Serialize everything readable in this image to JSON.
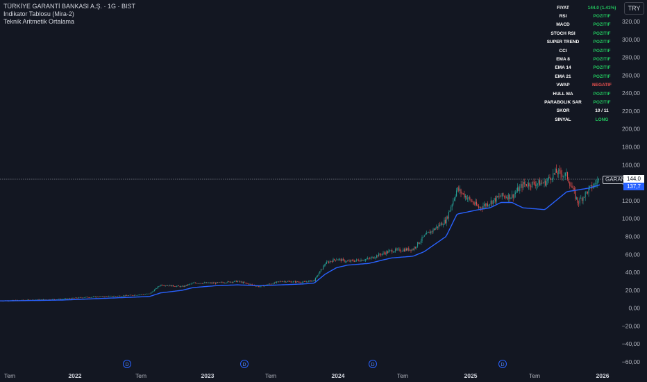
{
  "legend": {
    "symbol_line": "TÜRKİYE GARANTİ BANKASI A.Ş. · 1G · BIST",
    "indicator_1": "Indikator Tablosu (Mira-2)",
    "indicator_2": "Teknik Aritmetik Ortalama"
  },
  "currency_button": "TRY",
  "indicator_table": {
    "header": {
      "label": "FIYAT",
      "value": "144.0 (1.41%)"
    },
    "rows": [
      {
        "label": "RSI",
        "value": "POZITIF",
        "status": "positive"
      },
      {
        "label": "MACD",
        "value": "POZITIF",
        "status": "positive"
      },
      {
        "label": "STOCH RSI",
        "value": "POZITIF",
        "status": "positive"
      },
      {
        "label": "SUPER TREND",
        "value": "POZITIF",
        "status": "positive"
      },
      {
        "label": "CCI",
        "value": "POZITIF",
        "status": "positive"
      },
      {
        "label": "EMA 8",
        "value": "POZITIF",
        "status": "positive"
      },
      {
        "label": "EMA 14",
        "value": "POZITIF",
        "status": "positive"
      },
      {
        "label": "EMA 21",
        "value": "POZITIF",
        "status": "positive"
      },
      {
        "label": "VWAP",
        "value": "NEGATIF",
        "status": "negative"
      },
      {
        "label": "HULL MA",
        "value": "POZITIF",
        "status": "positive"
      },
      {
        "label": "PARABOLIK SAR",
        "value": "POZITIF",
        "status": "positive"
      }
    ],
    "score": {
      "label": "SKOR",
      "value": "10 / 11"
    },
    "signal": {
      "label": "SINYAL",
      "value": "LONG"
    }
  },
  "price_tags": {
    "symbol": "GARAN",
    "last_price": "144,0",
    "ma_value": "137,7"
  },
  "colors": {
    "background": "#131722",
    "up_candle": "#26a69a",
    "down_candle": "#ef5350",
    "ma_line": "#2962ff",
    "positive_text": "#22c55e",
    "negative_text": "#ef5350",
    "highlight_text": "#fde047"
  },
  "dividend_marker_label": "D",
  "chart_data": {
    "type": "line",
    "symbol": "GARAN",
    "timeframe": "1G",
    "y_axis": {
      "ticks": [
        "320,00",
        "300,00",
        "280,00",
        "260,00",
        "240,00",
        "220,00",
        "200,00",
        "180,00",
        "160,00",
        "140,00",
        "120,00",
        "100,00",
        "80,00",
        "60,00",
        "40,00",
        "20,00",
        "0,00",
        "−20,00",
        "−40,00",
        "−60,00"
      ],
      "ylim": [
        -60,
        320
      ]
    },
    "x_axis": {
      "ticks": [
        "Tem",
        "2022",
        "Tem",
        "2023",
        "Tem",
        "2024",
        "Tem",
        "2025",
        "Tem",
        "2026"
      ],
      "bold_ticks": [
        "2022",
        "2023",
        "2024",
        "2025",
        "2026"
      ],
      "date_range": [
        "2021-06",
        "2026-01"
      ]
    },
    "dividend_markers": [
      "2022-04",
      "2023-04",
      "2024-04",
      "2025-04"
    ],
    "last_price": 144.0,
    "ma_last": 137.7,
    "series": [
      {
        "kind": "price",
        "x": [
          "2021-06",
          "2021-09",
          "2021-12",
          "2022-02",
          "2022-04",
          "2022-06",
          "2022-08",
          "2022-09",
          "2022-11",
          "2022-12",
          "2023-02",
          "2023-04",
          "2023-06",
          "2023-08",
          "2023-10",
          "2023-11",
          "2023-12",
          "2024-01",
          "2024-02",
          "2024-04",
          "2024-05",
          "2024-06",
          "2024-08",
          "2024-09",
          "2024-11",
          "2024-12",
          "2025-02",
          "2025-03",
          "2025-04",
          "2025-05",
          "2025-06",
          "2025-08",
          "2025-09",
          "2025-10",
          "2025-11",
          "2025-12",
          "2026-01"
        ],
        "y": [
          8,
          9,
          10,
          12,
          13,
          14,
          16,
          26,
          24,
          28,
          28,
          30,
          24,
          30,
          29,
          31,
          50,
          55,
          52,
          55,
          60,
          64,
          66,
          80,
          98,
          133,
          112,
          118,
          125,
          125,
          138,
          140,
          152,
          148,
          118,
          132,
          144
        ]
      },
      {
        "kind": "moving_average",
        "x": [
          "2021-06",
          "2021-09",
          "2021-12",
          "2022-02",
          "2022-04",
          "2022-06",
          "2022-08",
          "2022-09",
          "2022-11",
          "2022-12",
          "2023-02",
          "2023-04",
          "2023-06",
          "2023-08",
          "2023-10",
          "2023-11",
          "2023-12",
          "2024-01",
          "2024-02",
          "2024-04",
          "2024-05",
          "2024-06",
          "2024-08",
          "2024-09",
          "2024-11",
          "2024-12",
          "2025-02",
          "2025-03",
          "2025-04",
          "2025-05",
          "2025-06",
          "2025-08",
          "2025-09",
          "2025-10",
          "2025-11",
          "2025-12",
          "2026-01"
        ],
        "y": [
          8,
          8.5,
          9,
          10,
          11,
          12,
          13,
          17,
          20,
          23,
          25,
          26,
          25,
          26,
          27,
          28,
          38,
          45,
          48,
          50,
          53,
          56,
          58,
          63,
          80,
          105,
          110,
          112,
          118,
          118,
          112,
          110,
          120,
          130,
          132,
          134,
          137.7
        ]
      }
    ],
    "grid": false,
    "legend_position": "top-left"
  }
}
